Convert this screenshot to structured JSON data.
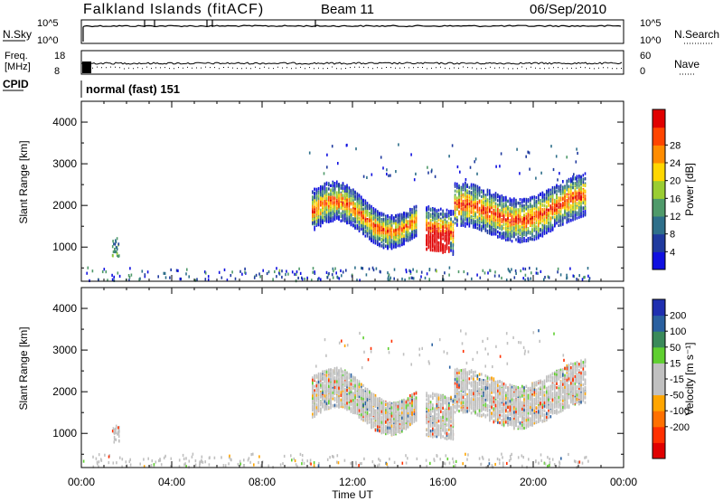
{
  "header": {
    "station": "Falkland Islands (fitACF)",
    "beam": "Beam 11",
    "date": "06/Sep/2010"
  },
  "panels": {
    "nsky": {
      "label": "N.Sky",
      "left_ticks": [
        "10^5",
        "10^0"
      ],
      "right_ticks": [
        "10^5",
        "10^0"
      ],
      "right_label": "N.Search"
    },
    "freq": {
      "label_line1": "Freq.",
      "label_line2": "[MHz]",
      "left_ticks": [
        "18",
        "8"
      ],
      "right_ticks": [
        "60",
        "0"
      ],
      "right_label": "Nave"
    },
    "cpid": {
      "label": "CPID",
      "text": "normal (fast) 151"
    }
  },
  "colors": {
    "power": [
      "#1010e0",
      "#1f3a9e",
      "#2e6f8a",
      "#4f9a6a",
      "#9acd32",
      "#ffd700",
      "#ff8c00",
      "#ff4500",
      "#e00000"
    ],
    "velocity": [
      "#1f2fb0",
      "#2a60a0",
      "#3a8a5a",
      "#5fcf30",
      "#c0c0c0",
      "#c0c0c0",
      "#ffa500",
      "#ff7000",
      "#ff3000",
      "#e00000"
    ]
  },
  "chart_data": [
    {
      "type": "heatmap",
      "title": "Power",
      "xlabel": "Time UT",
      "ylabel": "Slant Range [km]",
      "x_ticks": [
        "00:00",
        "04:00",
        "08:00",
        "12:00",
        "16:00",
        "20:00",
        "00:00"
      ],
      "xlim_hours": [
        0,
        24
      ],
      "y_ticks": [
        1000,
        2000,
        3000,
        4000
      ],
      "ylim": [
        180,
        4500
      ],
      "colorbar": {
        "label": "Power [dB]",
        "ticks": [
          4,
          8,
          12,
          16,
          20,
          24,
          28
        ]
      },
      "regions": [
        {
          "t0": 10.2,
          "t1": 14.8,
          "r_center": 1900,
          "r_spread": 350,
          "peak_db": 22
        },
        {
          "t0": 15.2,
          "t1": 22.3,
          "r_center": 1700,
          "r_spread": 350,
          "peak_db": 24
        },
        {
          "t0": 1.3,
          "t1": 1.6,
          "r_center": 1000,
          "r_spread": 200,
          "peak_db": 10
        }
      ]
    },
    {
      "type": "heatmap",
      "title": "Velocity",
      "xlabel": "Time UT",
      "ylabel": "Slant Range [km]",
      "x_ticks": [
        "00:00",
        "04:00",
        "08:00",
        "12:00",
        "16:00",
        "20:00",
        "00:00"
      ],
      "xlim_hours": [
        0,
        24
      ],
      "y_ticks": [
        1000,
        2000,
        3000,
        4000
      ],
      "ylim": [
        180,
        4500
      ],
      "colorbar": {
        "label": "Velocity [m s⁻¹]",
        "ticks": [
          200,
          100,
          50,
          15,
          -15,
          -50,
          -100,
          -200
        ]
      }
    }
  ]
}
